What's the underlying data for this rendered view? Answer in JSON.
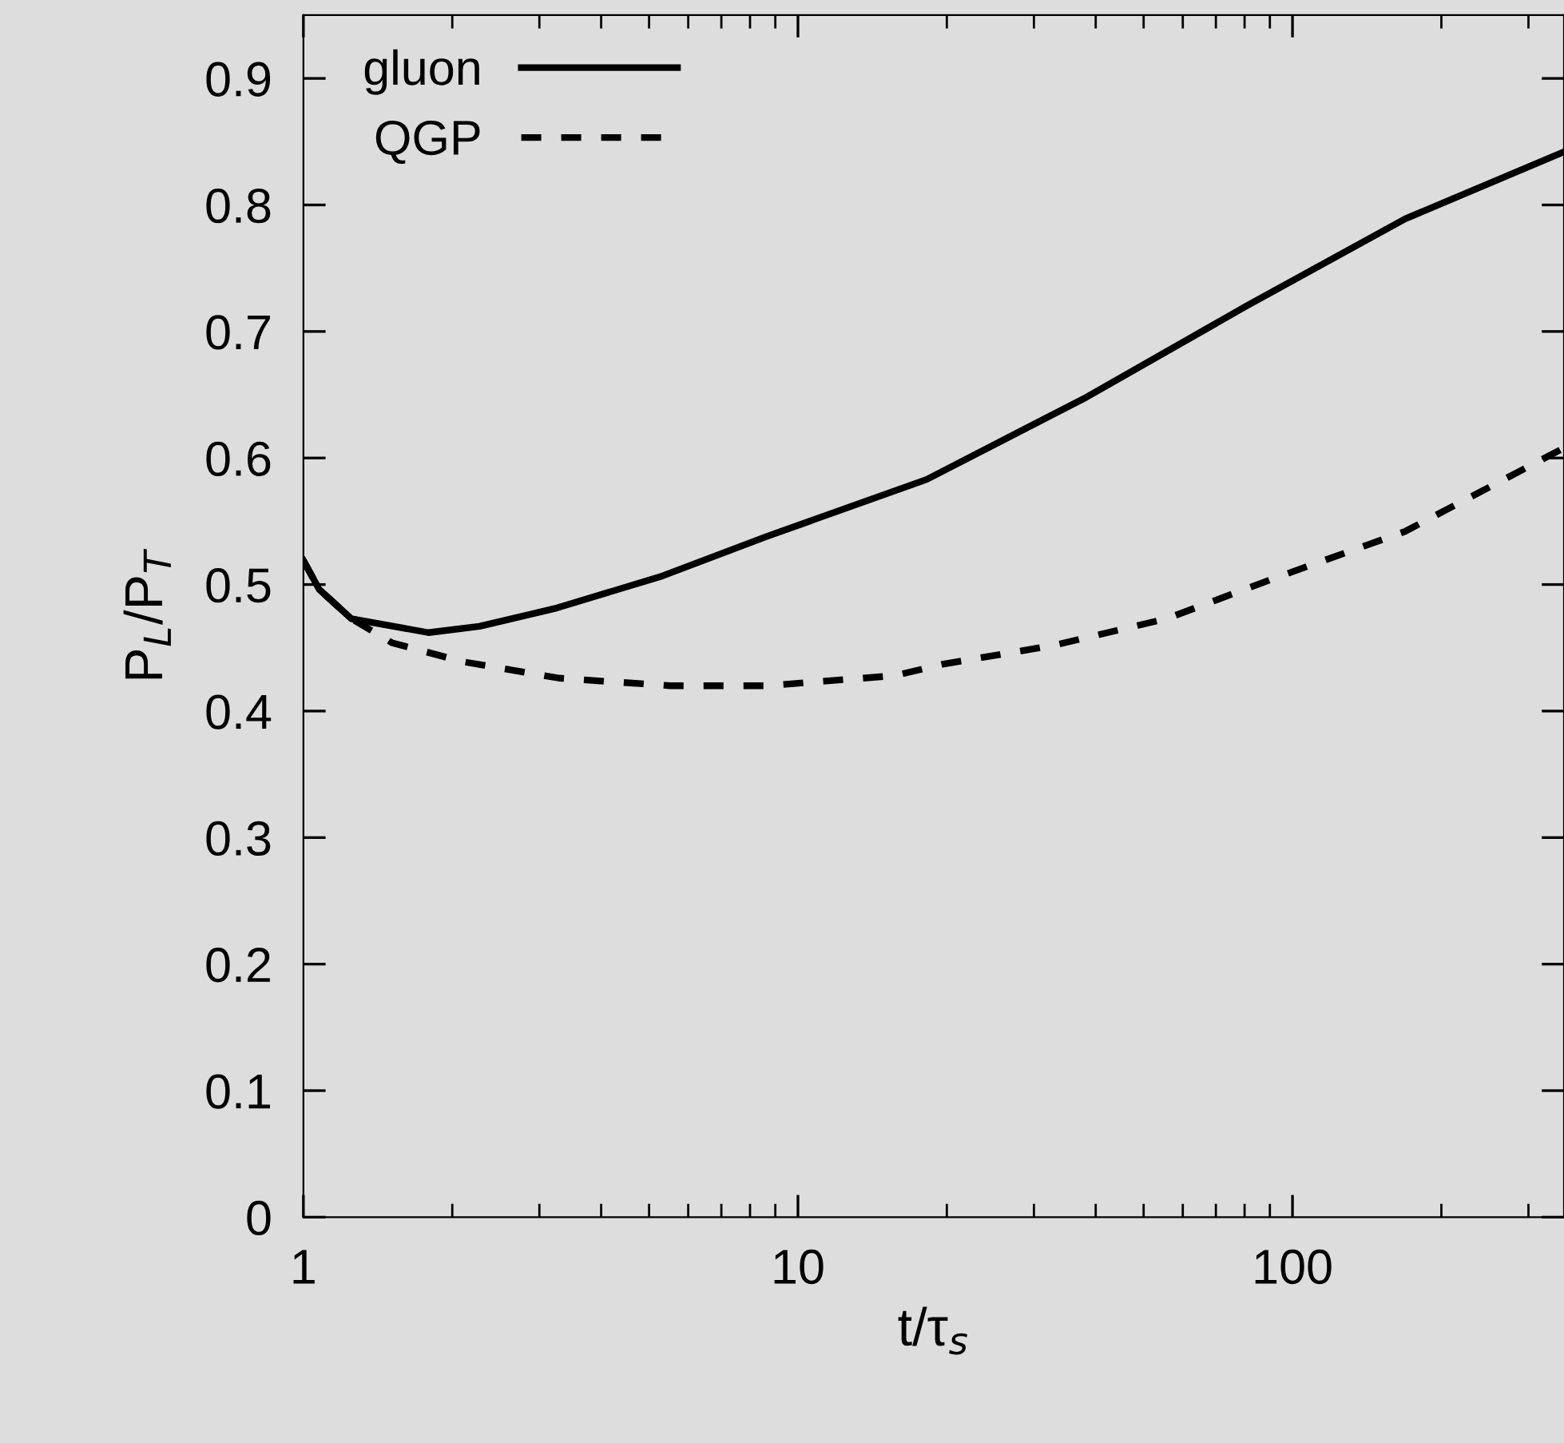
{
  "chart_data": {
    "type": "line",
    "xlabel": "t/τ$_{s}$",
    "ylabel": "P$_{L}$/P$_{T}$",
    "log": "x",
    "xlim": [
      1,
      354
    ],
    "xticks": [
      1,
      10,
      100
    ],
    "ylim": [
      0,
      0.95
    ],
    "yticks": [
      0,
      0.1,
      0.2,
      0.3,
      0.4,
      0.5,
      0.6,
      0.7,
      0.8,
      0.9
    ],
    "grid": false,
    "legend": "top left",
    "marker": "none",
    "series": [
      {
        "name": "gluon",
        "color": "#000000",
        "line_style": "solid",
        "x": [
          1,
          1.077,
          1.25,
          1.79,
          2.27,
          3.22,
          5.25,
          8.65,
          18.2,
          38.3,
          80.6,
          169,
          354
        ],
        "values": [
          0.519,
          0.496,
          0.473,
          0.462,
          0.467,
          0.481,
          0.506,
          0.538,
          0.583,
          0.648,
          0.72,
          0.789,
          0.842
        ]
      },
      {
        "name": "QGP",
        "color": "#000000",
        "line_style": "dashed",
        "x": [
          1,
          1.077,
          1.25,
          1.51,
          2.1,
          3.29,
          5.53,
          8.65,
          15.7,
          19.6,
          33.0,
          55.6,
          93.5,
          169,
          354
        ],
        "values": [
          0.519,
          0.496,
          0.473,
          0.454,
          0.439,
          0.426,
          0.42,
          0.42,
          0.428,
          0.437,
          0.452,
          0.473,
          0.506,
          0.542,
          0.608
        ]
      }
    ]
  }
}
